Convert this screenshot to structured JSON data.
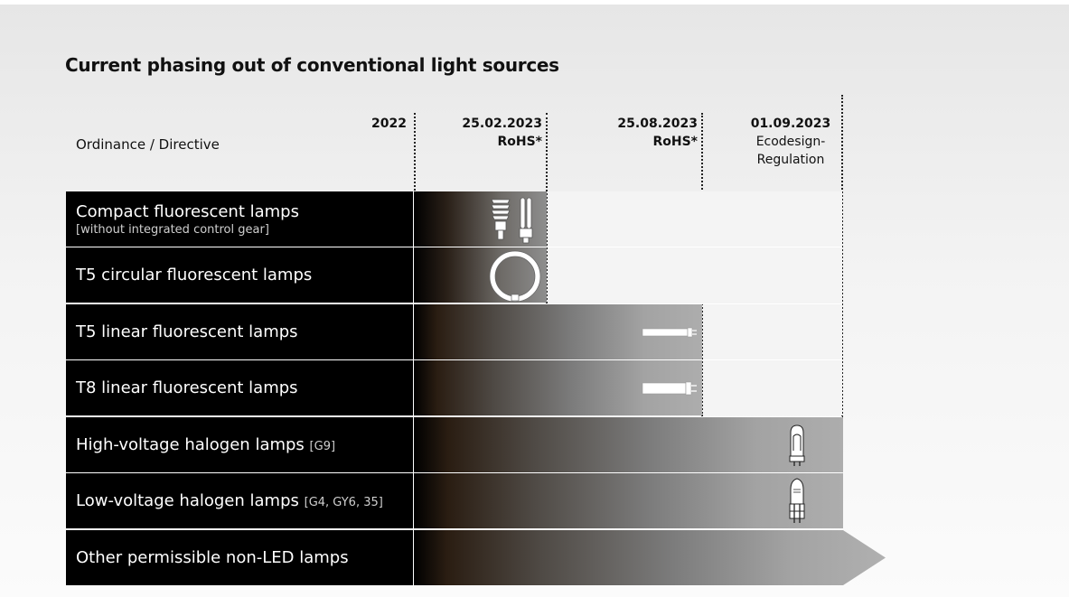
{
  "title": "Current phasing out of conventional light sources",
  "header": {
    "row_label": "Ordinance / Directive",
    "columns": [
      {
        "date": "2022",
        "sub": ""
      },
      {
        "date": "25.02.2023",
        "sub": "RoHS*"
      },
      {
        "date": "25.08.2023",
        "sub": "RoHS*"
      },
      {
        "date": "01.09.2023",
        "sub1": "Ecodesign-",
        "sub2": "Regulation"
      }
    ]
  },
  "rows": [
    {
      "label": "Compact fluorescent lamps",
      "sub": "[without integrated control gear]",
      "extra": "",
      "phase_out": "25.02.2023",
      "icon": "compact-fluorescent-lamp-icon"
    },
    {
      "label": "T5 circular fluorescent lamps",
      "sub": "",
      "extra": "",
      "phase_out": "25.02.2023",
      "icon": "circular-fluorescent-lamp-icon"
    },
    {
      "label": "T5 linear fluorescent lamps",
      "sub": "",
      "extra": "",
      "phase_out": "25.08.2023",
      "icon": "t5-linear-tube-icon"
    },
    {
      "label": "T8 linear fluorescent lamps",
      "sub": "",
      "extra": "",
      "phase_out": "25.08.2023",
      "icon": "t8-linear-tube-icon"
    },
    {
      "label": "High-voltage halogen lamps",
      "sub": "",
      "extra": "[G9]",
      "phase_out": "01.09.2023",
      "icon": "g9-halogen-capsule-icon"
    },
    {
      "label": "Low-voltage halogen lamps",
      "sub": "",
      "extra": "[G4, GY6, 35]",
      "phase_out": "01.09.2023",
      "icon": "g4-halogen-capsule-icon"
    },
    {
      "label": "Other permissible non-LED lamps",
      "sub": "",
      "extra": "",
      "phase_out": "ongoing",
      "icon": "arrow-icon"
    }
  ]
}
